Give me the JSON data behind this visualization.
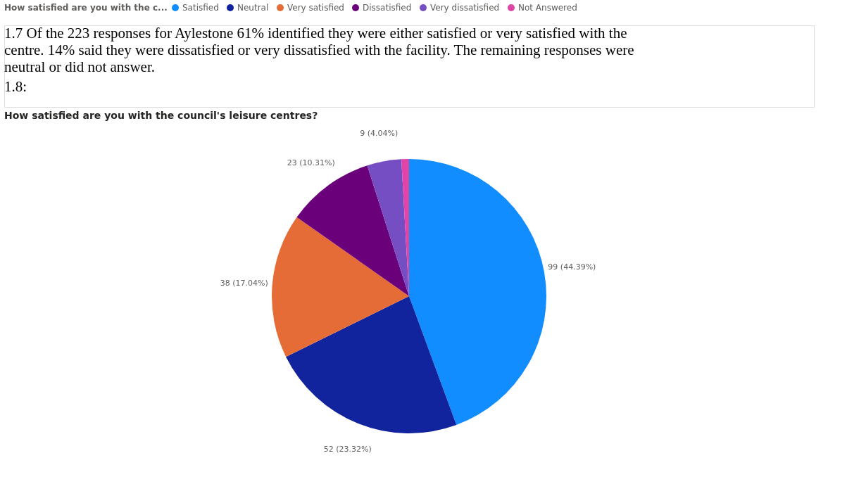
{
  "chart_data": {
    "type": "pie",
    "title": "How satisfied are you with the council's leisure centres?",
    "legend_title": "How satisfied are you with the c...",
    "legend": "top",
    "categories": [
      "Satisfied",
      "Neutral",
      "Very satisfied",
      "Dissatisfied",
      "Very dissatisfied",
      "Not Answered"
    ],
    "values": [
      99,
      52,
      38,
      23,
      9,
      2
    ],
    "colors": [
      "#118dff",
      "#12239e",
      "#e66c37",
      "#6b007b",
      "#744ec2",
      "#e044a7"
    ],
    "value_labels": [
      "99 (44.39%)",
      "52 (23.32%)",
      "38 (17.04%)",
      "23 (10.31%)",
      "9 (4.04%)",
      null
    ],
    "annotations": [
      "1.7 Of the 223 responses for Aylestone 61% identified they were either satisfied or very satisfied with the centre. 14% said they were dissatisfied or very dissatisfied with the facility. The remaining responses were neutral or did not answer.",
      "1.8:"
    ]
  }
}
